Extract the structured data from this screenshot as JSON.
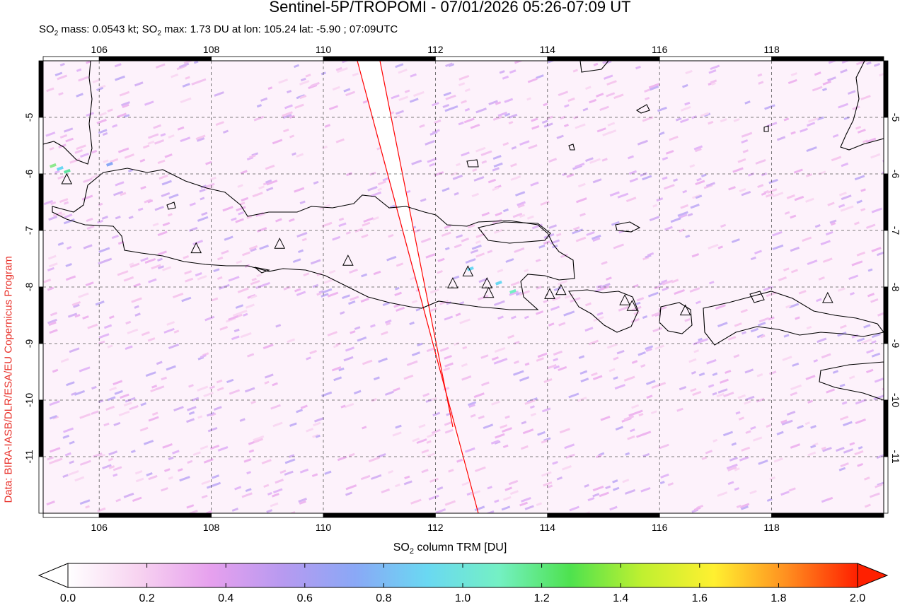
{
  "header": {
    "title": "Sentinel-5P/TROPOMI - 07/01/2026 05:26-07:09 UT",
    "subtitle_mass_label": "SO",
    "subtitle_mass_sub": "2",
    "subtitle_mass_value": " mass: 0.0543 kt; SO",
    "subtitle_max_sub": "2",
    "subtitle_max_value": " max: 1.73 DU at lon: 105.24 lat: -5.90 ; 07:09UTC"
  },
  "credit": "Data: BIRA-IASB/DLR/ESA/EU Copernicus Program",
  "map": {
    "lon_range": [
      105.0,
      120.0
    ],
    "lat_range": [
      -12.0,
      -4.0
    ],
    "lon_ticks": [
      "106",
      "108",
      "110",
      "112",
      "114",
      "116",
      "118"
    ],
    "lat_ticks": [
      "-5",
      "-6",
      "-7",
      "-8",
      "-9",
      "-10",
      "-11"
    ],
    "grid": "dashed",
    "orbit_edge_color": "#ff0000",
    "coastline_color": "#000000",
    "volcanoes": [
      {
        "lon": 105.42,
        "lat": -6.1
      },
      {
        "lon": 107.73,
        "lat": -7.32
      },
      {
        "lon": 109.22,
        "lat": -7.24
      },
      {
        "lon": 110.44,
        "lat": -7.54
      },
      {
        "lon": 112.31,
        "lat": -7.94
      },
      {
        "lon": 112.58,
        "lat": -7.73
      },
      {
        "lon": 112.92,
        "lat": -7.94
      },
      {
        "lon": 112.95,
        "lat": -8.11
      },
      {
        "lon": 114.04,
        "lat": -8.13
      },
      {
        "lon": 114.24,
        "lat": -8.06
      },
      {
        "lon": 115.38,
        "lat": -8.24
      },
      {
        "lon": 115.51,
        "lat": -8.34
      },
      {
        "lon": 116.46,
        "lat": -8.42
      },
      {
        "lon": 119.0,
        "lat": -8.2
      }
    ]
  },
  "colorbar": {
    "label_prefix": "SO",
    "label_sub": "2",
    "label_suffix": " column TRM [DU]",
    "min": 0.0,
    "max": 2.0,
    "ticks": [
      "0.0",
      "0.2",
      "0.4",
      "0.6",
      "0.8",
      "1.0",
      "1.2",
      "1.4",
      "1.6",
      "1.8",
      "2.0"
    ],
    "stops": [
      "#ffffff",
      "#f7d2f0",
      "#e6a0ee",
      "#b79af0",
      "#8aa8f6",
      "#6ad8f2",
      "#74f0c4",
      "#4ee24e",
      "#c0f030",
      "#fff030",
      "#ff9020",
      "#ff2000"
    ]
  }
}
